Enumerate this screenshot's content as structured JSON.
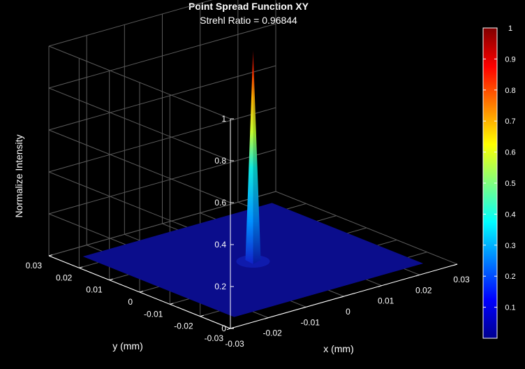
{
  "chart_data": {
    "type": "surface",
    "title": "Point Spread Function XY",
    "subtitle": "Strehl Ratio = 0.96844",
    "xlabel": "x (mm)",
    "ylabel": "y (mm)",
    "zlabel": "Normalize Intensity",
    "xlim": [
      -0.03,
      0.03
    ],
    "ylim": [
      -0.03,
      0.03
    ],
    "zlim": [
      0,
      1
    ],
    "x_ticks": [
      "-0.03",
      "-0.02",
      "-0.01",
      "0",
      "0.01",
      "0.02",
      "0.03"
    ],
    "y_ticks": [
      "-0.03",
      "-0.02",
      "-0.01",
      "0",
      "0.01",
      "0.02",
      "0.03"
    ],
    "z_ticks": [
      "0",
      "0.2",
      "0.4",
      "0.6",
      "0.8",
      "1"
    ],
    "grid": true,
    "colormap": "jet",
    "colorbar": {
      "range": [
        0,
        1
      ],
      "ticks": [
        "0.1",
        "0.2",
        "0.3",
        "0.4",
        "0.5",
        "0.6",
        "0.7",
        "0.8",
        "0.9",
        "1"
      ]
    },
    "peak": {
      "x": 0,
      "y": 0,
      "z": 1
    },
    "floor_value": 0
  },
  "colors": {
    "background": "#000000",
    "floor": "#0b0d8c",
    "grid": "#5a5a5a",
    "axis": "#ffffff"
  }
}
